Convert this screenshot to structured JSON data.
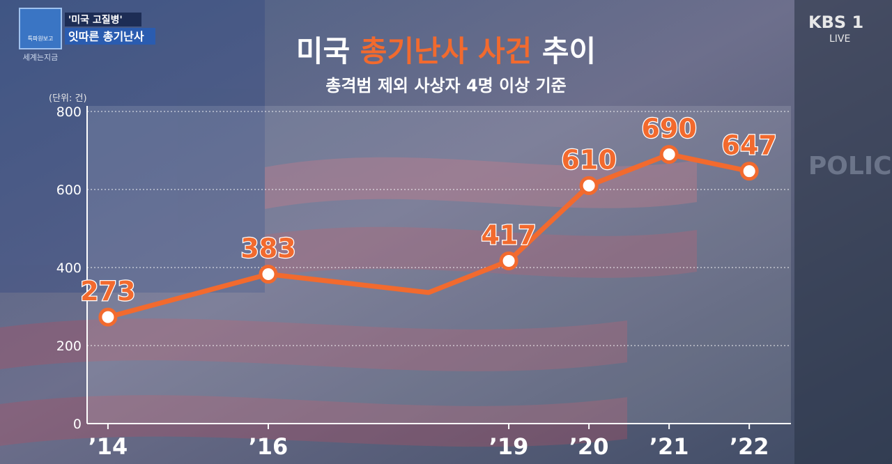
{
  "header": {
    "tag": "'미국 고질병'",
    "headline": "잇따른 총기난사",
    "program_box": "특파원보고",
    "program": "세계는지금",
    "channel": "KBS 1",
    "live": "LIVE"
  },
  "background_text": "POLICE",
  "chart_data": {
    "type": "line",
    "title": {
      "prefix": "미국",
      "highlight": "총기난사 사건",
      "suffix": "추이"
    },
    "subtitle": "총격범 제외 사상자 4명 이상 기준",
    "unit": "(단위: 건)",
    "x": [
      2014,
      2016,
      2018,
      2019,
      2020,
      2021,
      2022
    ],
    "series": [
      {
        "name": "총기난사 사건",
        "color": "#f26a2e",
        "values": [
          273,
          383,
          336,
          417,
          610,
          690,
          647
        ]
      }
    ],
    "xlim": [
      2013.74,
      2022.52
    ],
    "xticks": [
      {
        "value": 2014,
        "label": "’14"
      },
      {
        "value": 2016,
        "label": "’16"
      },
      {
        "value": 2019,
        "label": "’19"
      },
      {
        "value": 2020,
        "label": "’20"
      },
      {
        "value": 2021,
        "label": "’21"
      },
      {
        "value": 2022,
        "label": "’22"
      }
    ],
    "ylim": [
      0,
      800
    ],
    "yticks": [
      0,
      200,
      400,
      600,
      800
    ],
    "grid": true
  }
}
